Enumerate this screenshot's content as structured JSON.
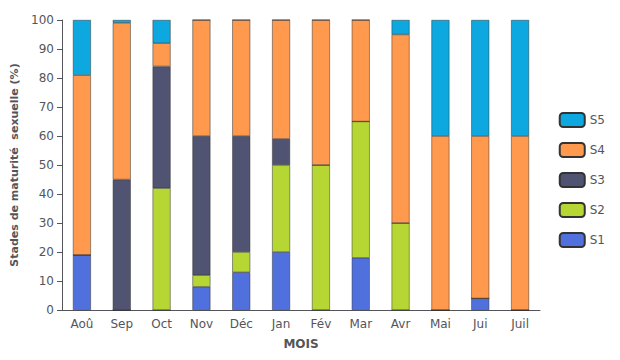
{
  "chart_data": {
    "type": "bar",
    "stacked": true,
    "grid": false,
    "legend": "right",
    "xlabel": "MOIS",
    "ylabel": "Stades de maturité  sexuelle (%)",
    "categories": [
      "Aoû",
      "Sep",
      "Oct",
      "Nov",
      "Déc",
      "Jan",
      "Fév",
      "Mar",
      "Avr",
      "Mai",
      "Jui",
      "Juil"
    ],
    "series": [
      {
        "name": "S1",
        "values": [
          19,
          0,
          0,
          8,
          13,
          20,
          0,
          18,
          0,
          0,
          4,
          0
        ]
      },
      {
        "name": "S2",
        "values": [
          0,
          0,
          42,
          4,
          7,
          30,
          50,
          47,
          30,
          0,
          0,
          0
        ]
      },
      {
        "name": "S3",
        "values": [
          0,
          45,
          42,
          48,
          40,
          9,
          0,
          0,
          0,
          0,
          0,
          0
        ]
      },
      {
        "name": "S4",
        "values": [
          62,
          54,
          8,
          40,
          40,
          41,
          50,
          35,
          65,
          60,
          56,
          60
        ]
      },
      {
        "name": "S5",
        "values": [
          19,
          1,
          8,
          0,
          0,
          0,
          0,
          0,
          5,
          40,
          40,
          40
        ]
      }
    ],
    "ylim": [
      0,
      100
    ],
    "yticks": [
      0,
      10,
      20,
      30,
      40,
      50,
      60,
      70,
      80,
      90,
      100
    ]
  }
}
